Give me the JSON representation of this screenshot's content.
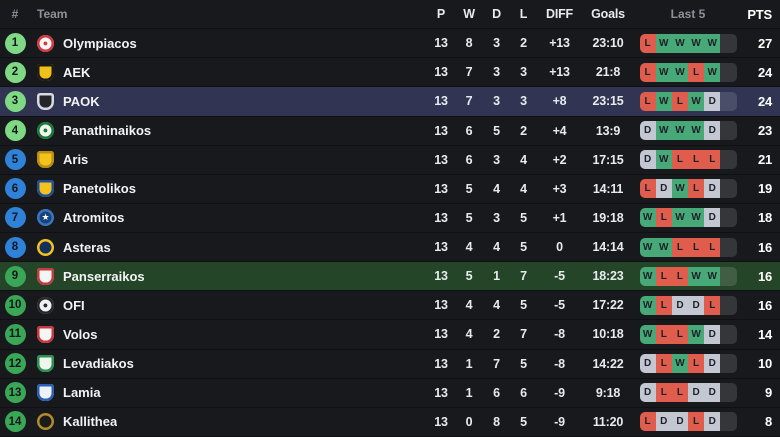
{
  "header": {
    "rank": "#",
    "team": "Team",
    "p": "P",
    "w": "W",
    "d": "D",
    "l": "L",
    "diff": "DIFF",
    "goals": "Goals",
    "last5": "Last 5",
    "pts": "PTS"
  },
  "colors": {
    "row_bg": "#17191d",
    "separator": "#0e1013",
    "zones": {
      "light_green": "#7fd883",
      "blue": "#2f82d8",
      "green": "#3aa757"
    },
    "form": {
      "W": "#47a878",
      "L": "#e05d4d",
      "D": "#c3c7d2",
      "empty": "rgba(255,255,255,0.13)"
    },
    "highlight": {
      "blue": "#313453",
      "green": "#254528"
    }
  },
  "rows": [
    {
      "rank": 1,
      "zone": "light_green",
      "team": "Olympiacos",
      "logo": {
        "shape": "circle",
        "bg": "#f5f5f5",
        "ring": "#cf3a3f",
        "glyph": "●",
        "glyph_color": "#cf3a3f"
      },
      "p": 13,
      "w": 8,
      "d": 3,
      "l": 2,
      "diff": "+13",
      "goals": "23:10",
      "last5": [
        "L",
        "W",
        "W",
        "W",
        "W"
      ],
      "pts": 27,
      "highlight": null
    },
    {
      "rank": 2,
      "zone": "light_green",
      "team": "AEK",
      "logo": {
        "shape": "shield",
        "bg": "#f0c01d",
        "ring": "#1c1a14",
        "glyph": "",
        "glyph_color": ""
      },
      "p": 13,
      "w": 7,
      "d": 3,
      "l": 3,
      "diff": "+13",
      "goals": "21:8",
      "last5": [
        "L",
        "W",
        "W",
        "L",
        "W"
      ],
      "pts": 24,
      "highlight": null
    },
    {
      "rank": 3,
      "zone": "light_green",
      "team": "PAOK",
      "logo": {
        "shape": "shield",
        "bg": "#23252a",
        "ring": "#d8dade",
        "glyph": "",
        "glyph_color": ""
      },
      "p": 13,
      "w": 7,
      "d": 3,
      "l": 3,
      "diff": "+8",
      "goals": "23:15",
      "last5": [
        "L",
        "W",
        "L",
        "W",
        "D"
      ],
      "pts": 24,
      "highlight": "blue"
    },
    {
      "rank": 4,
      "zone": "light_green",
      "team": "Panathinaikos",
      "logo": {
        "shape": "circle",
        "bg": "#eef4ee",
        "ring": "#157a35",
        "glyph": "●",
        "glyph_color": "#157a35"
      },
      "p": 13,
      "w": 6,
      "d": 5,
      "l": 2,
      "diff": "+4",
      "goals": "13:9",
      "last5": [
        "D",
        "W",
        "W",
        "W",
        "D"
      ],
      "pts": 23,
      "highlight": null
    },
    {
      "rank": 5,
      "zone": "blue",
      "team": "Aris",
      "logo": {
        "shape": "shield",
        "bg": "#f2c21d",
        "ring": "#b98e14",
        "glyph": "",
        "glyph_color": ""
      },
      "p": 13,
      "w": 6,
      "d": 3,
      "l": 4,
      "diff": "+2",
      "goals": "17:15",
      "last5": [
        "D",
        "W",
        "L",
        "L",
        "L"
      ],
      "pts": 21,
      "highlight": null
    },
    {
      "rank": 6,
      "zone": "blue",
      "team": "Panetolikos",
      "logo": {
        "shape": "shield",
        "bg": "#f2c21d",
        "ring": "#1c4fa0",
        "glyph": "",
        "glyph_color": ""
      },
      "p": 13,
      "w": 5,
      "d": 4,
      "l": 4,
      "diff": "+3",
      "goals": "14:11",
      "last5": [
        "L",
        "D",
        "W",
        "L",
        "D"
      ],
      "pts": 19,
      "highlight": null
    },
    {
      "rank": 7,
      "zone": "blue",
      "team": "Atromitos",
      "logo": {
        "shape": "circle",
        "bg": "#16437c",
        "ring": "#3a74bd",
        "glyph": "★",
        "glyph_color": "#ffffff"
      },
      "p": 13,
      "w": 5,
      "d": 3,
      "l": 5,
      "diff": "+1",
      "goals": "19:18",
      "last5": [
        "W",
        "L",
        "W",
        "W",
        "D"
      ],
      "pts": 18,
      "highlight": null
    },
    {
      "rank": 8,
      "zone": "blue",
      "team": "Asteras",
      "logo": {
        "shape": "circle",
        "bg": "#14315e",
        "ring": "#f2c21d",
        "glyph": "",
        "glyph_color": ""
      },
      "p": 13,
      "w": 4,
      "d": 4,
      "l": 5,
      "diff": "0",
      "goals": "14:14",
      "last5": [
        "W",
        "W",
        "L",
        "L",
        "L"
      ],
      "pts": 16,
      "highlight": null
    },
    {
      "rank": 9,
      "zone": "green",
      "team": "Panserraikos",
      "logo": {
        "shape": "shield",
        "bg": "#f5f5f5",
        "ring": "#c43b3b",
        "glyph": "",
        "glyph_color": ""
      },
      "p": 13,
      "w": 5,
      "d": 1,
      "l": 7,
      "diff": "-5",
      "goals": "18:23",
      "last5": [
        "W",
        "L",
        "L",
        "W",
        "W"
      ],
      "pts": 16,
      "highlight": "green"
    },
    {
      "rank": 10,
      "zone": "green",
      "team": "OFI",
      "logo": {
        "shape": "circle",
        "bg": "#f0f0f0",
        "ring": "#26262a",
        "glyph": "●",
        "glyph_color": "#26262a"
      },
      "p": 13,
      "w": 4,
      "d": 4,
      "l": 5,
      "diff": "-5",
      "goals": "17:22",
      "last5": [
        "W",
        "L",
        "D",
        "D",
        "L"
      ],
      "pts": 16,
      "highlight": null
    },
    {
      "rank": 11,
      "zone": "green",
      "team": "Volos",
      "logo": {
        "shape": "shield",
        "bg": "#f5f5f5",
        "ring": "#c8393e",
        "glyph": "",
        "glyph_color": ""
      },
      "p": 13,
      "w": 4,
      "d": 2,
      "l": 7,
      "diff": "-8",
      "goals": "10:18",
      "last5": [
        "W",
        "L",
        "L",
        "W",
        "D"
      ],
      "pts": 14,
      "highlight": null
    },
    {
      "rank": 12,
      "zone": "green",
      "team": "Levadiakos",
      "logo": {
        "shape": "shield",
        "bg": "#eef5ee",
        "ring": "#2f8f4e",
        "glyph": "",
        "glyph_color": ""
      },
      "p": 13,
      "w": 1,
      "d": 7,
      "l": 5,
      "diff": "-8",
      "goals": "14:22",
      "last5": [
        "D",
        "L",
        "W",
        "L",
        "D"
      ],
      "pts": 10,
      "highlight": null
    },
    {
      "rank": 13,
      "zone": "green",
      "team": "Lamia",
      "logo": {
        "shape": "shield",
        "bg": "#eef2f8",
        "ring": "#2a5fb4",
        "glyph": "",
        "glyph_color": ""
      },
      "p": 13,
      "w": 1,
      "d": 6,
      "l": 6,
      "diff": "-9",
      "goals": "9:18",
      "last5": [
        "D",
        "L",
        "L",
        "D",
        "D"
      ],
      "pts": 9,
      "highlight": null
    },
    {
      "rank": 14,
      "zone": "green",
      "team": "Kallithea",
      "logo": {
        "shape": "circle",
        "bg": "#1c1b17",
        "ring": "#b08c2e",
        "glyph": "",
        "glyph_color": ""
      },
      "p": 13,
      "w": 0,
      "d": 8,
      "l": 5,
      "diff": "-9",
      "goals": "11:20",
      "last5": [
        "L",
        "D",
        "D",
        "L",
        "D"
      ],
      "pts": 8,
      "highlight": null
    }
  ]
}
